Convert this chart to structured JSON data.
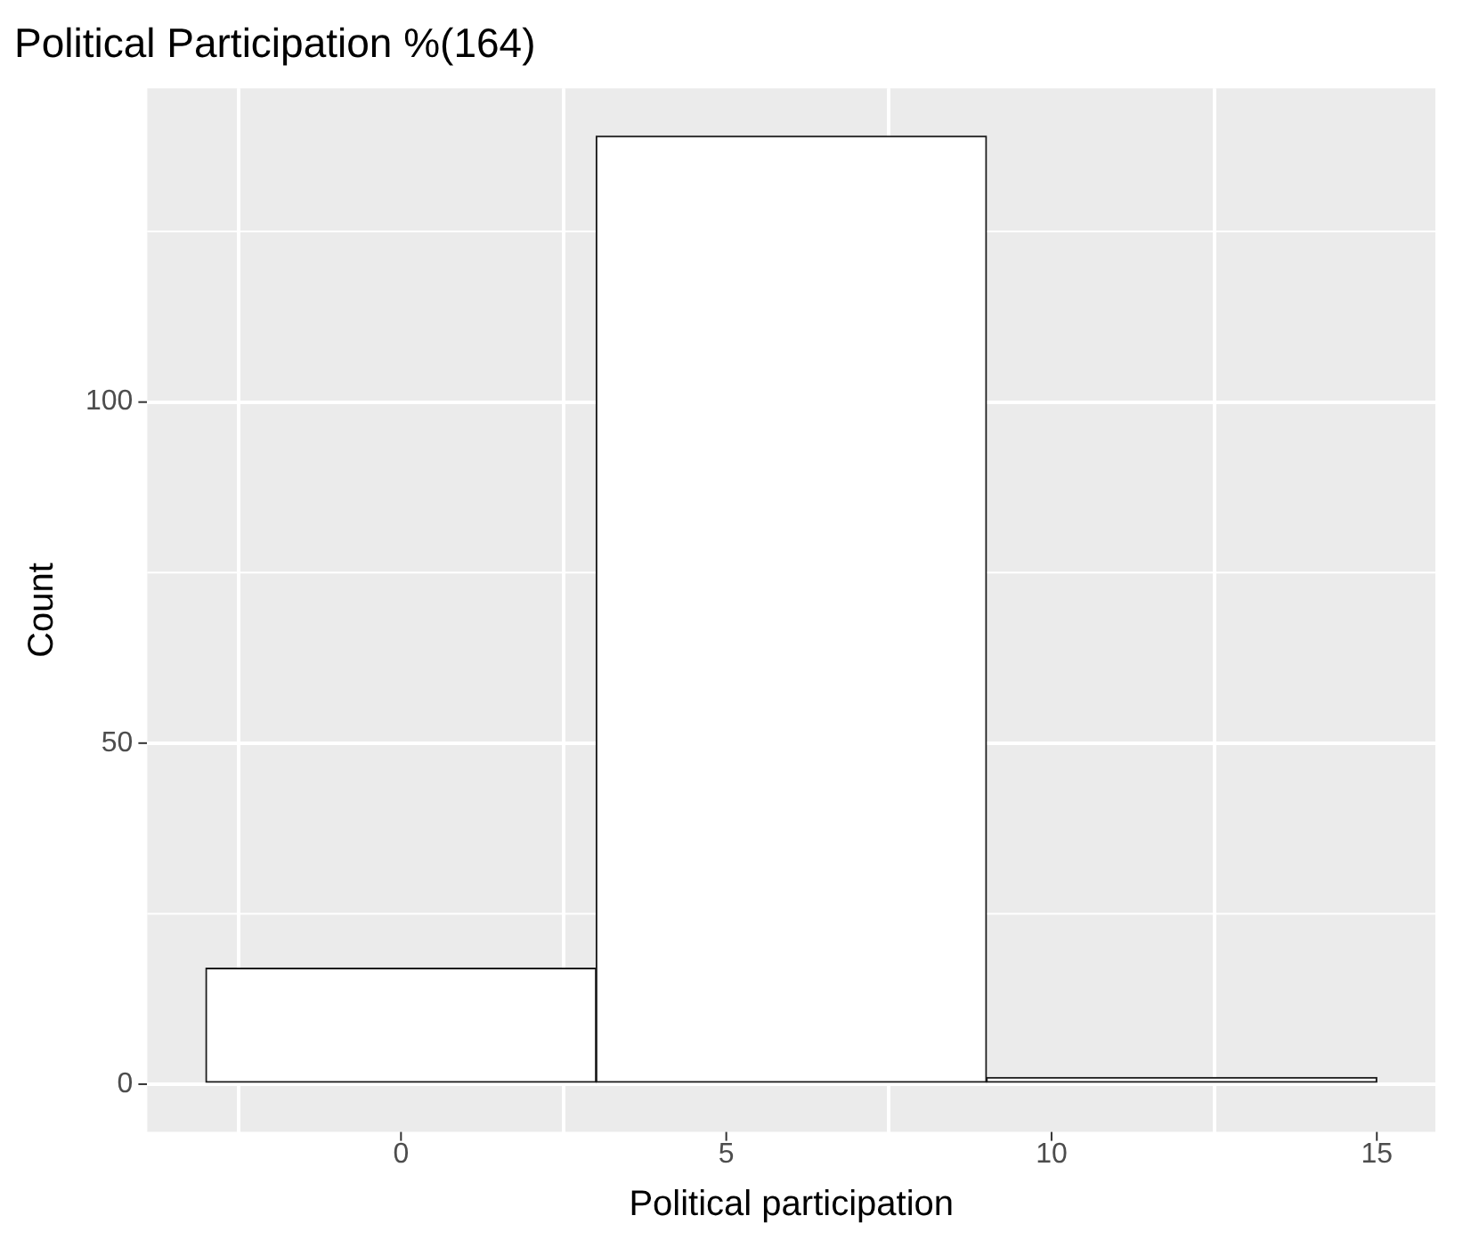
{
  "chart_data": {
    "type": "histogram",
    "title": "Political Participation %(164)",
    "xlabel": "Political participation",
    "ylabel": "Count",
    "bins": [
      -3,
      3,
      9,
      15
    ],
    "values": [
      17,
      139,
      1
    ],
    "color": "#ffffff",
    "xlim": [
      -3.9,
      15.9
    ],
    "xticks": [
      0,
      5,
      10,
      15
    ],
    "ylim": [
      -7,
      146
    ],
    "yticks": [
      0,
      50,
      100
    ],
    "grid": true,
    "legend": false
  }
}
